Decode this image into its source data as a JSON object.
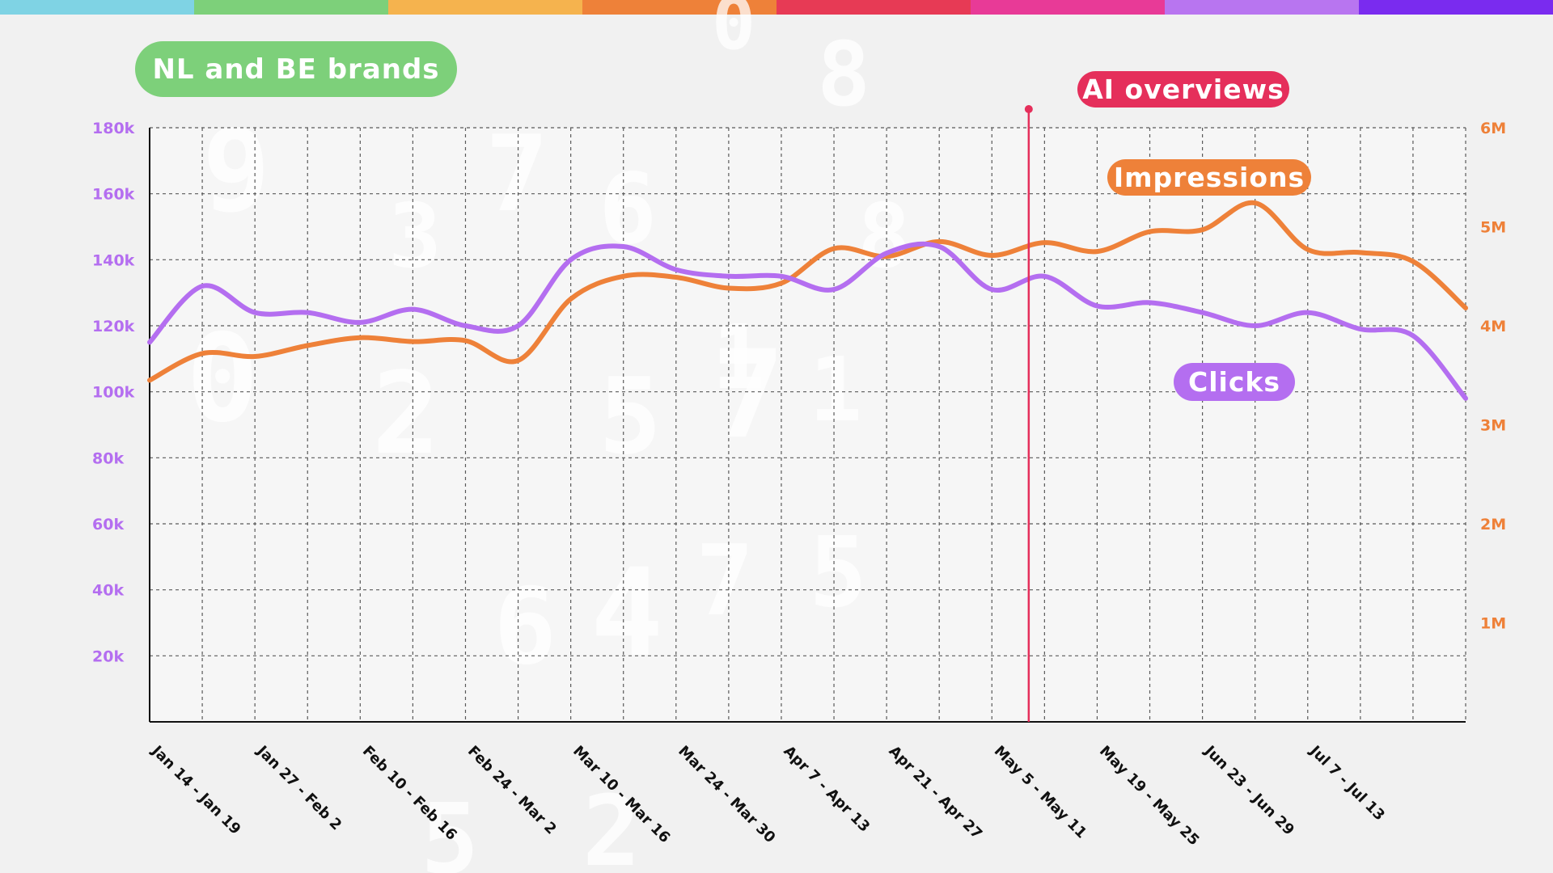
{
  "title": "NL and BE brands",
  "colors": {
    "clicks": "#b46ef0",
    "impressions": "#ee8139",
    "ai_marker": "#e52f5b",
    "title_pill": "#7dd07a",
    "grid": "#5a5a5a",
    "axis": "#111111",
    "topbar": [
      "#7fd3e4",
      "#7dd07a",
      "#f5b34e",
      "#ee8139",
      "#e73a55",
      "#e83a97",
      "#b875f0",
      "#7a2bef"
    ]
  },
  "chart_data": {
    "type": "line",
    "title": "NL and BE brands",
    "weeks": 25,
    "x_tick_labels": [
      "Jan 14 - Jan 19",
      "Jan 27 - Feb 2",
      "Feb 10 - Feb 16",
      "Feb 24 - Mar 2",
      "Mar 10 - Mar 16",
      "Mar 24 - Mar 30",
      "Apr 7 - Apr 13",
      "Apr 21 - Apr 27",
      "May 5 - May 11",
      "May 19 - May 25",
      "Jun 23 - Jun 29",
      "Jul 7 - Jul 13"
    ],
    "y_left": {
      "label": "Clicks",
      "range": [
        0,
        180000
      ],
      "ticks": [
        20000,
        40000,
        60000,
        80000,
        100000,
        120000,
        140000,
        160000,
        180000
      ],
      "tick_labels": [
        "20k",
        "40k",
        "60k",
        "80k",
        "100k",
        "120k",
        "140k",
        "160k",
        "180k"
      ]
    },
    "y_right": {
      "label": "Impressions",
      "range": [
        0,
        6000000
      ],
      "ticks": [
        1000000,
        2000000,
        3000000,
        4000000,
        5000000,
        6000000
      ],
      "tick_labels": [
        "1M",
        "2M",
        "3M",
        "4M",
        "5M",
        "6M"
      ]
    },
    "series": [
      {
        "name": "Clicks",
        "axis": "left",
        "values": [
          115000,
          132000,
          124000,
          124000,
          121000,
          125000,
          120000,
          120000,
          140000,
          144000,
          137000,
          135000,
          135000,
          131000,
          142000,
          144000,
          131000,
          135000,
          126000,
          127000,
          124000,
          120000,
          124000,
          119000,
          117000,
          98000
        ]
      },
      {
        "name": "Impressions",
        "axis": "right",
        "values": [
          3450000,
          3720000,
          3690000,
          3800000,
          3880000,
          3840000,
          3850000,
          3650000,
          4270000,
          4500000,
          4490000,
          4380000,
          4430000,
          4780000,
          4700000,
          4850000,
          4710000,
          4840000,
          4750000,
          4950000,
          4970000,
          5240000,
          4770000,
          4740000,
          4650000,
          4180000
        ]
      }
    ],
    "annotations": [
      {
        "label": "AI overviews",
        "type": "vertical-line",
        "week_position": 16.7
      },
      {
        "label": "Impressions",
        "series": "Impressions"
      },
      {
        "label": "Clicks",
        "series": "Clicks"
      }
    ],
    "grid": true,
    "legend": "inline labels"
  }
}
